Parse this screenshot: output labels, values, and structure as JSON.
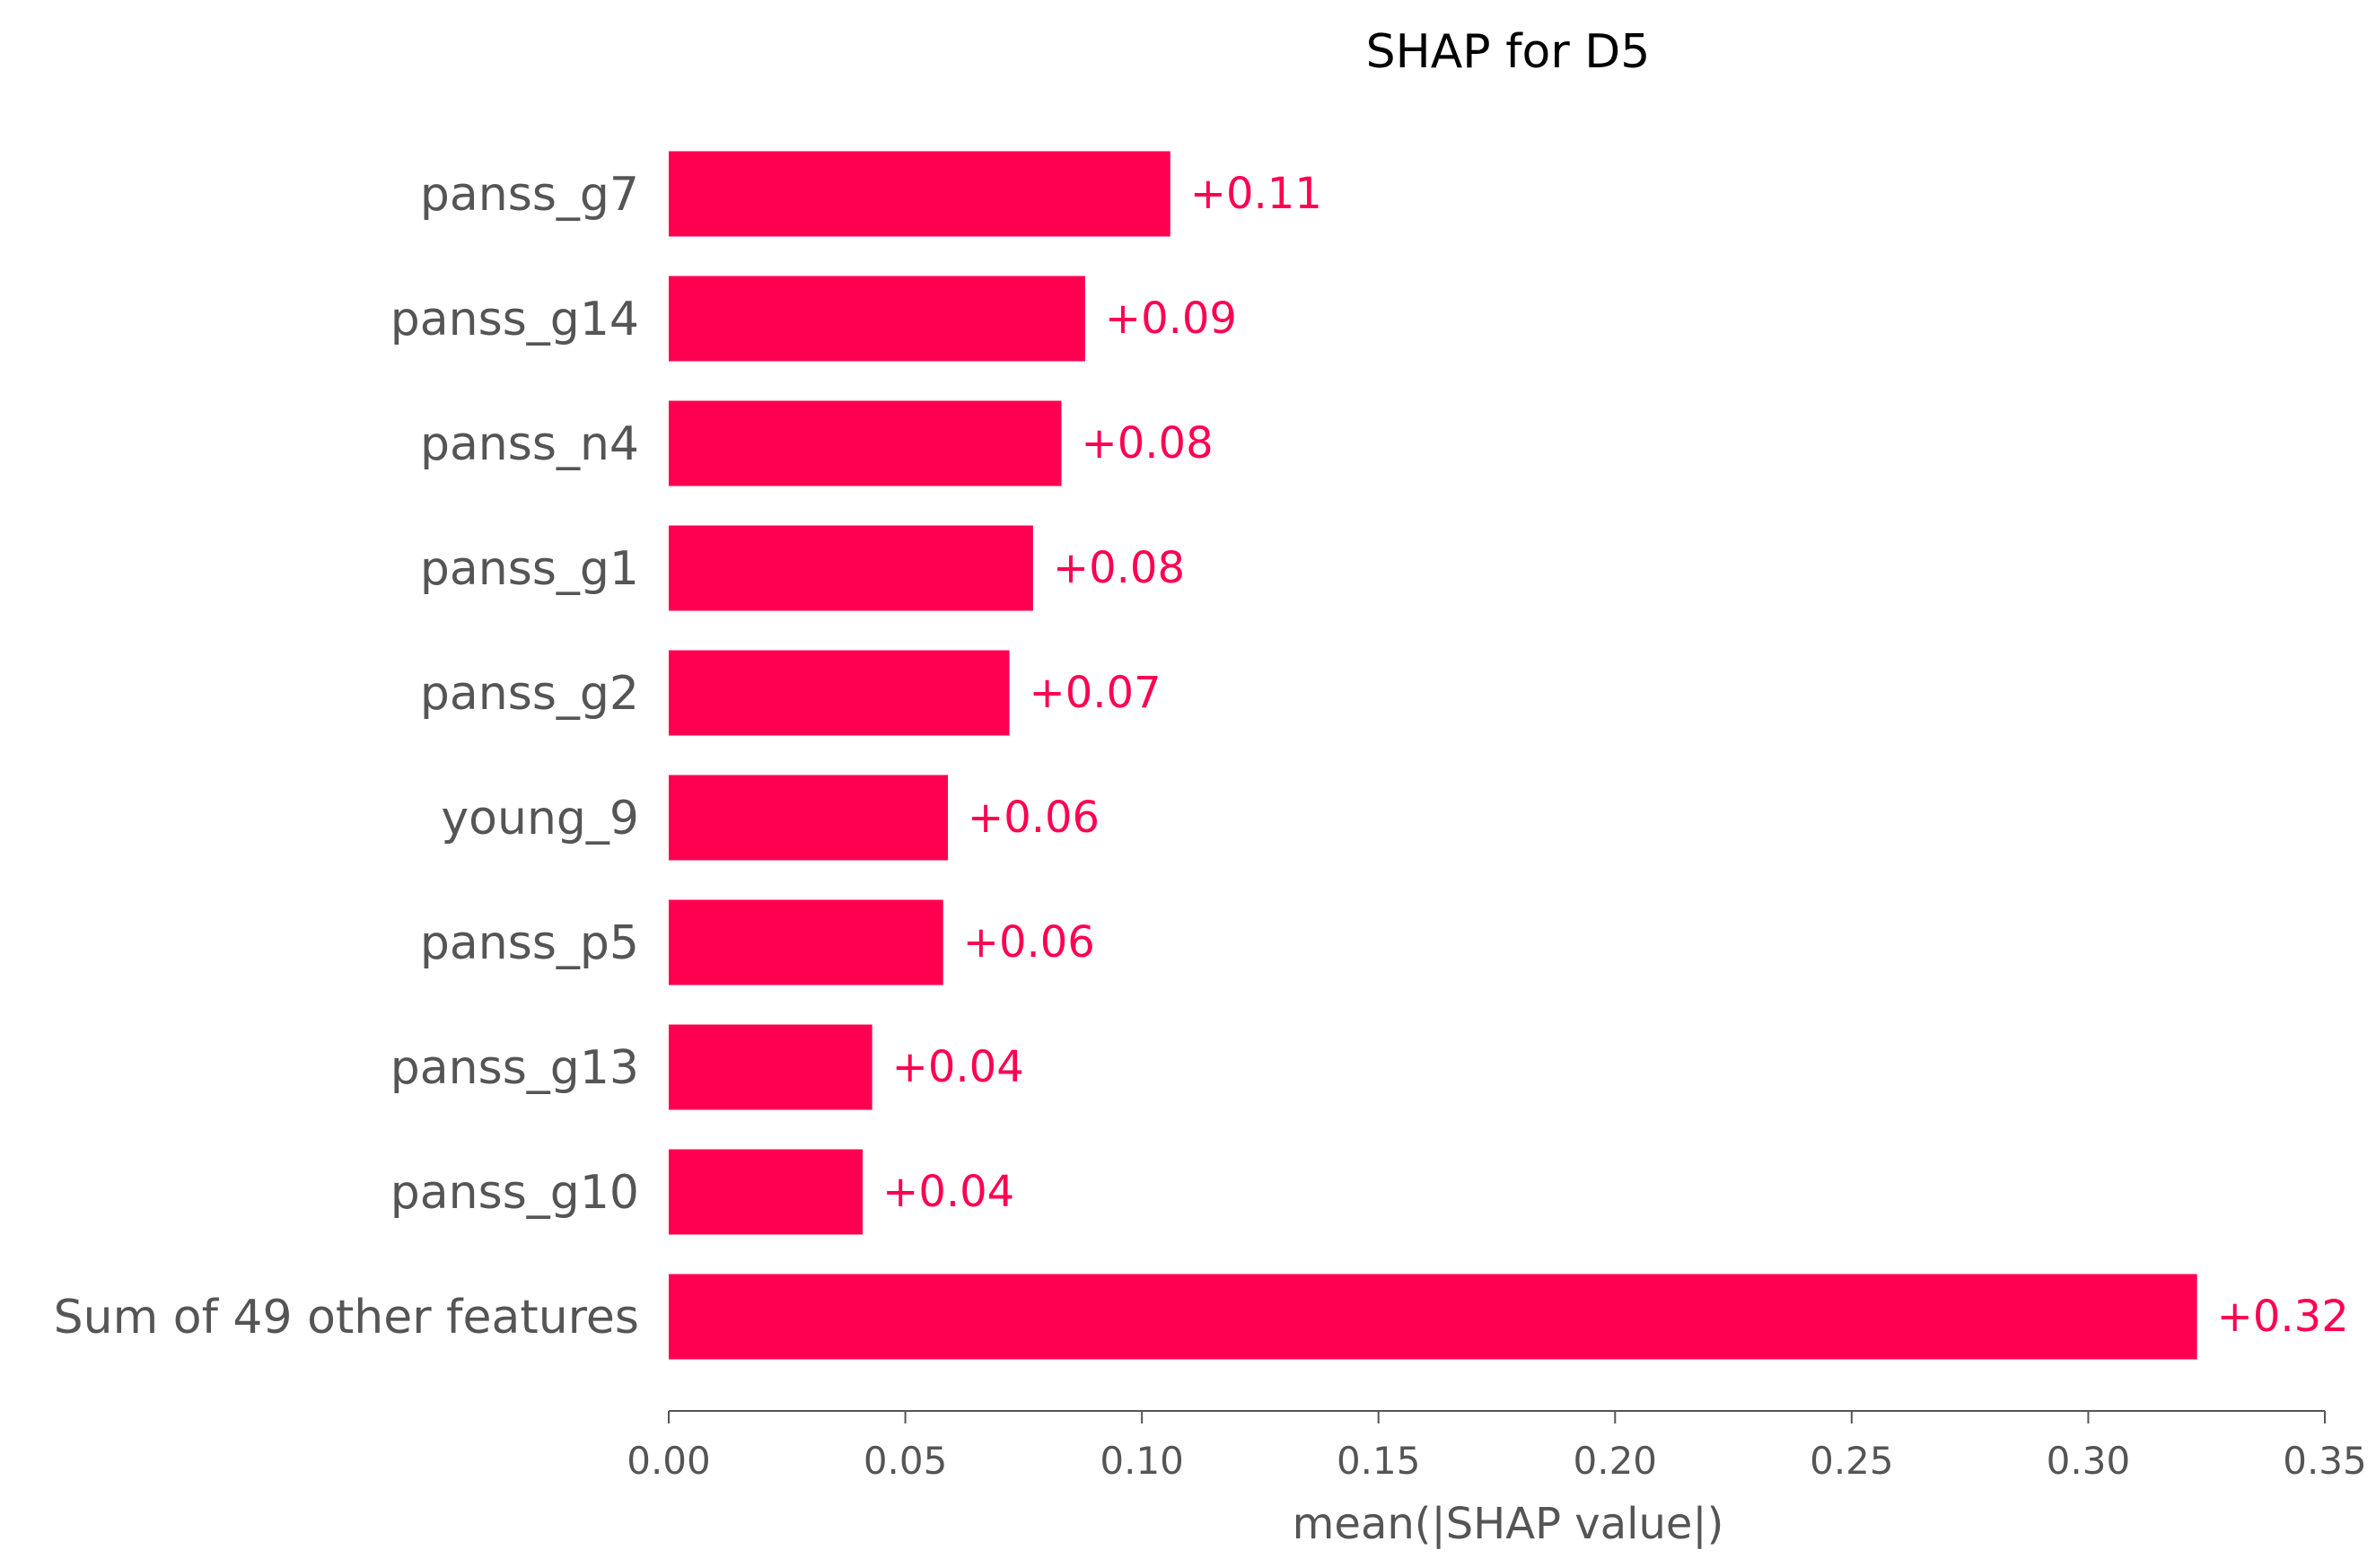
{
  "chart_data": {
    "type": "bar",
    "orientation": "horizontal",
    "title": "SHAP for D5",
    "xlabel": "mean(|SHAP value|)",
    "ylabel": "",
    "xlim": [
      0,
      0.35
    ],
    "xticks": [
      "0.00",
      "0.05",
      "0.10",
      "0.15",
      "0.20",
      "0.25",
      "0.30",
      "0.35"
    ],
    "xtick_values": [
      0,
      0.05,
      0.1,
      0.15,
      0.2,
      0.25,
      0.3,
      0.35
    ],
    "categories": [
      "panss_g7",
      "panss_g14",
      "panss_n4",
      "panss_g1",
      "panss_g2",
      "young_9",
      "panss_p5",
      "panss_g13",
      "panss_g10",
      "Sum of 49 other features"
    ],
    "values": [
      0.106,
      0.088,
      0.083,
      0.077,
      0.072,
      0.059,
      0.058,
      0.043,
      0.041,
      0.323
    ],
    "labels": [
      "+0.11",
      "+0.09",
      "+0.08",
      "+0.08",
      "+0.07",
      "+0.06",
      "+0.06",
      "+0.04",
      "+0.04",
      "+0.32"
    ],
    "grid": false,
    "colors": {
      "bar": "#ff0051",
      "text": "#555555",
      "title": "#000000"
    }
  }
}
